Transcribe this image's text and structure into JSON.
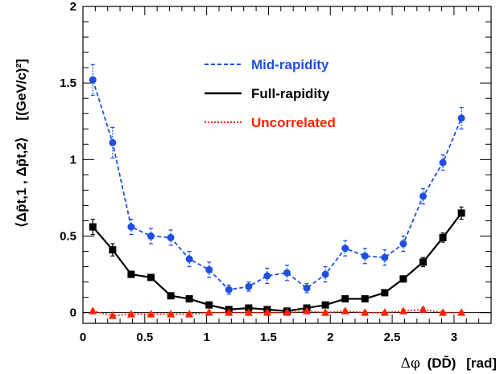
{
  "chart_data": {
    "type": "line",
    "xlabel_prefix": "Δφ",
    "xlabel_pair": "(DD̄)",
    "xlabel_unit": "[rad]",
    "ylabel": "⟨Δp̄t,1 , Δp̄t,2⟩",
    "ylabel_unit": "[(GeV/c)²]",
    "xlim": [
      0,
      3.3
    ],
    "ylim": [
      -0.07,
      2.0
    ],
    "x_ticks": [
      "0",
      "0.5",
      "1",
      "1.5",
      "2",
      "2.5",
      "3"
    ],
    "y_ticks": [
      "0",
      "0.5",
      "1",
      "1.5",
      "2"
    ],
    "x": [
      0.08,
      0.24,
      0.39,
      0.55,
      0.71,
      0.86,
      1.02,
      1.18,
      1.34,
      1.49,
      1.65,
      1.81,
      1.96,
      2.12,
      2.28,
      2.44,
      2.59,
      2.75,
      2.91,
      3.06
    ],
    "series": [
      {
        "name": "Mid-rapidity",
        "color": "#1f4fe0",
        "style": "dashed",
        "marker": "circle",
        "values": [
          1.52,
          1.11,
          0.56,
          0.5,
          0.49,
          0.35,
          0.28,
          0.15,
          0.17,
          0.24,
          0.26,
          0.16,
          0.25,
          0.42,
          0.37,
          0.36,
          0.45,
          0.76,
          0.98,
          1.27
        ],
        "errors": [
          0.1,
          0.1,
          0.05,
          0.05,
          0.05,
          0.05,
          0.05,
          0.03,
          0.03,
          0.05,
          0.05,
          0.03,
          0.05,
          0.05,
          0.05,
          0.05,
          0.05,
          0.05,
          0.05,
          0.07
        ]
      },
      {
        "name": "Full-rapidity",
        "color": "#000000",
        "style": "solid",
        "marker": "square",
        "values": [
          0.56,
          0.41,
          0.25,
          0.23,
          0.11,
          0.09,
          0.05,
          0.02,
          0.03,
          0.02,
          0.01,
          0.03,
          0.05,
          0.09,
          0.09,
          0.13,
          0.22,
          0.33,
          0.49,
          0.65
        ],
        "errors": [
          0.05,
          0.04,
          0.02,
          0.02,
          0.01,
          0.01,
          0.01,
          0.01,
          0.01,
          0.01,
          0.01,
          0.01,
          0.01,
          0.01,
          0.01,
          0.01,
          0.02,
          0.03,
          0.03,
          0.04
        ]
      },
      {
        "name": "Uncorrelated",
        "color": "#ff2200",
        "style": "dotted",
        "marker": "triangle",
        "values": [
          0.01,
          -0.02,
          -0.01,
          -0.01,
          -0.01,
          -0.01,
          0.0,
          0.0,
          0.0,
          0.0,
          0.0,
          0.01,
          0.0,
          0.01,
          0.0,
          0.0,
          0.01,
          0.02,
          0.0,
          0.0
        ],
        "errors": [
          0.01,
          0.01,
          0.01,
          0.01,
          0.01,
          0.01,
          0.01,
          0.01,
          0.01,
          0.01,
          0.01,
          0.01,
          0.01,
          0.01,
          0.01,
          0.01,
          0.01,
          0.01,
          0.01,
          0.01
        ]
      }
    ],
    "grid": false,
    "legend_position": "top-center"
  }
}
